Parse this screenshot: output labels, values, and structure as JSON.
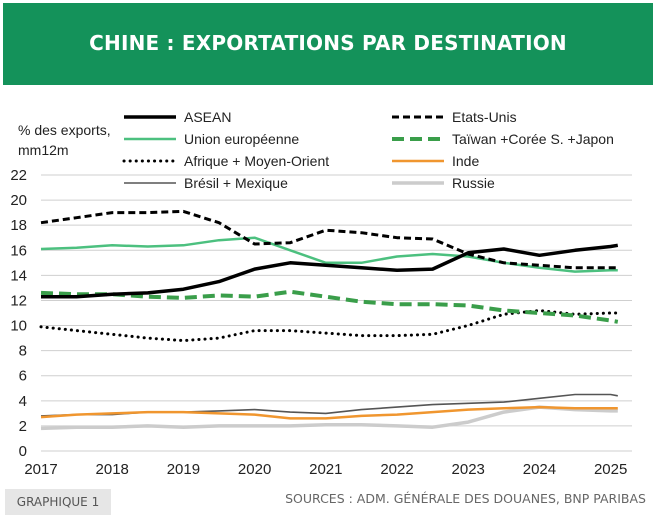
{
  "header": {
    "title": "CHINE : EXPORTATIONS PAR DESTINATION"
  },
  "footer": {
    "badge": "GRAPHIQUE 1",
    "sources": "SOURCES : ADM. GÉNÉRALE DES DOUANES, BNP PARIBAS"
  },
  "chart_data": {
    "type": "line",
    "title": "CHINE : EXPORTATIONS PAR DESTINATION",
    "ylabel_lines": [
      "% des exports,",
      "mm12m"
    ],
    "ylim": [
      0,
      22
    ],
    "yticks": [
      0,
      2,
      4,
      6,
      8,
      10,
      12,
      14,
      16,
      18,
      20,
      22
    ],
    "xlim": [
      2017,
      2025.3
    ],
    "xticks": [
      2017,
      2018,
      2019,
      2020,
      2021,
      2022,
      2023,
      2024,
      2025
    ],
    "grid": true,
    "legend_position": "top",
    "series": [
      {
        "name": "ASEAN",
        "color": "#000000",
        "style": "solid-thick",
        "x": [
          2017,
          2017.5,
          2018,
          2018.5,
          2019,
          2019.5,
          2020,
          2020.5,
          2021,
          2021.5,
          2022,
          2022.5,
          2023,
          2023.5,
          2024,
          2024.5,
          2025,
          2025.1
        ],
        "y": [
          12.3,
          12.3,
          12.5,
          12.6,
          12.9,
          13.5,
          14.5,
          15.0,
          14.8,
          14.6,
          14.4,
          14.5,
          15.8,
          16.1,
          15.6,
          16.0,
          16.3,
          16.4
        ]
      },
      {
        "name": "Etats-Unis",
        "color": "#000000",
        "style": "dashed",
        "x": [
          2017,
          2017.5,
          2018,
          2018.5,
          2019,
          2019.5,
          2020,
          2020.5,
          2021,
          2021.5,
          2022,
          2022.5,
          2023,
          2023.5,
          2024,
          2024.5,
          2025,
          2025.1
        ],
        "y": [
          18.2,
          18.6,
          19.0,
          19.0,
          19.1,
          18.2,
          16.5,
          16.6,
          17.6,
          17.4,
          17.0,
          16.9,
          15.7,
          15.0,
          14.8,
          14.6,
          14.6,
          14.6
        ]
      },
      {
        "name": "Union européenne",
        "color": "#4cc07f",
        "style": "solid",
        "x": [
          2017,
          2017.5,
          2018,
          2018.5,
          2019,
          2019.5,
          2020,
          2020.5,
          2021,
          2021.5,
          2022,
          2022.5,
          2023,
          2023.5,
          2024,
          2024.5,
          2025,
          2025.1
        ],
        "y": [
          16.1,
          16.2,
          16.4,
          16.3,
          16.4,
          16.8,
          17.0,
          16.0,
          15.0,
          15.0,
          15.5,
          15.7,
          15.5,
          15.0,
          14.6,
          14.3,
          14.4,
          14.4
        ]
      },
      {
        "name": "Taïwan +Corée S. +Japon",
        "color": "#3a9e4a",
        "style": "dashed-thick",
        "x": [
          2017,
          2017.5,
          2018,
          2018.5,
          2019,
          2019.5,
          2020,
          2020.5,
          2021,
          2021.5,
          2022,
          2022.5,
          2023,
          2023.5,
          2024,
          2024.5,
          2025,
          2025.1
        ],
        "y": [
          12.6,
          12.5,
          12.5,
          12.3,
          12.2,
          12.4,
          12.3,
          12.7,
          12.3,
          11.9,
          11.7,
          11.7,
          11.6,
          11.2,
          11.0,
          10.8,
          10.4,
          10.3
        ]
      },
      {
        "name": "Afrique + Moyen-Orient",
        "color": "#000000",
        "style": "dotted",
        "x": [
          2017,
          2017.5,
          2018,
          2018.5,
          2019,
          2019.5,
          2020,
          2020.5,
          2021,
          2021.5,
          2022,
          2022.5,
          2023,
          2023.5,
          2024,
          2024.5,
          2025,
          2025.1
        ],
        "y": [
          9.9,
          9.6,
          9.3,
          9.0,
          8.8,
          9.0,
          9.6,
          9.6,
          9.4,
          9.2,
          9.2,
          9.3,
          10.0,
          10.9,
          11.2,
          10.9,
          11.0,
          11.0
        ]
      },
      {
        "name": "Inde",
        "color": "#f0962f",
        "style": "solid",
        "x": [
          2017,
          2017.5,
          2018,
          2018.5,
          2019,
          2019.5,
          2020,
          2020.5,
          2021,
          2021.5,
          2022,
          2022.5,
          2023,
          2023.5,
          2024,
          2024.5,
          2025,
          2025.1
        ],
        "y": [
          2.7,
          2.9,
          3.0,
          3.1,
          3.1,
          3.0,
          2.9,
          2.6,
          2.6,
          2.8,
          2.9,
          3.1,
          3.3,
          3.4,
          3.5,
          3.4,
          3.4,
          3.4
        ]
      },
      {
        "name": "Brésil + Mexique",
        "color": "#555555",
        "style": "solid-thin",
        "x": [
          2017,
          2017.5,
          2018,
          2018.5,
          2019,
          2019.5,
          2020,
          2020.5,
          2021,
          2021.5,
          2022,
          2022.5,
          2023,
          2023.5,
          2024,
          2024.5,
          2025,
          2025.1
        ],
        "y": [
          2.8,
          2.9,
          2.9,
          3.1,
          3.1,
          3.2,
          3.3,
          3.1,
          3.0,
          3.3,
          3.5,
          3.7,
          3.8,
          3.9,
          4.2,
          4.5,
          4.5,
          4.4
        ]
      },
      {
        "name": "Russie",
        "color": "#cccccc",
        "style": "solid-thick",
        "x": [
          2017,
          2017.5,
          2018,
          2018.5,
          2019,
          2019.5,
          2020,
          2020.5,
          2021,
          2021.5,
          2022,
          2022.5,
          2023,
          2023.5,
          2024,
          2024.5,
          2025,
          2025.1
        ],
        "y": [
          1.8,
          1.9,
          1.9,
          2.0,
          1.9,
          2.0,
          2.0,
          2.0,
          2.1,
          2.1,
          2.0,
          1.9,
          2.3,
          3.1,
          3.5,
          3.3,
          3.2,
          3.2
        ]
      }
    ]
  }
}
